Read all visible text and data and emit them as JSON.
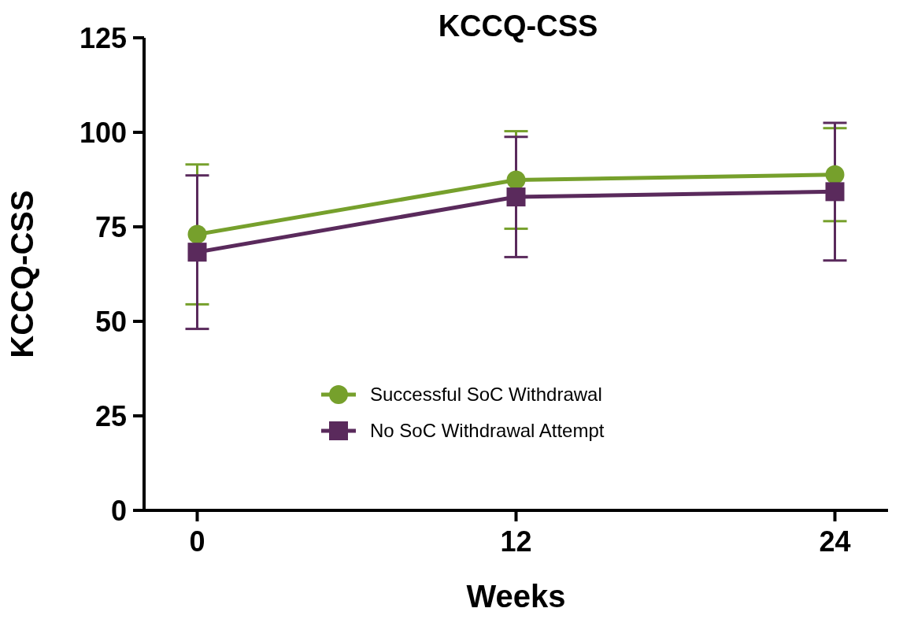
{
  "chart_data": {
    "type": "line",
    "title": "KCCQ-CSS",
    "xlabel": "Weeks",
    "ylabel": "KCCQ-CSS",
    "x": [
      0,
      12,
      24
    ],
    "xlim": [
      -2,
      26
    ],
    "xticks": [
      0,
      12,
      24
    ],
    "ylim": [
      0,
      125
    ],
    "yticks": [
      0,
      25,
      50,
      75,
      100,
      125
    ],
    "grid": false,
    "legend": "bottom",
    "line_style": "solid",
    "series": [
      {
        "name": "Successful SoC Withdrawal",
        "color": "#76a02c",
        "marker": "circle",
        "values": [
          73.0,
          87.4,
          88.8
        ],
        "errors": [
          18.5,
          12.9,
          12.3
        ]
      },
      {
        "name": "No SoC Withdrawal Attempt",
        "color": "#5a2a5c",
        "marker": "square",
        "values": [
          68.3,
          82.9,
          84.3
        ],
        "errors": [
          20.3,
          15.9,
          18.2
        ]
      }
    ]
  }
}
